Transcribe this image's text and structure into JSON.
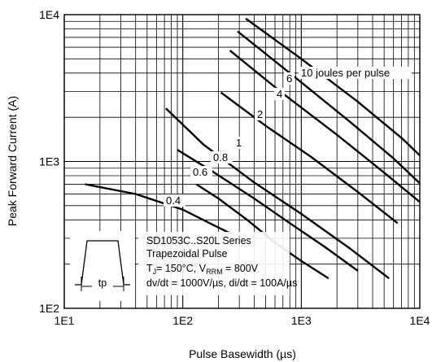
{
  "chart_data": {
    "type": "line",
    "xlabel": "Pulse Basewidth (µs)",
    "ylabel": "Peak Forward Current (A)",
    "xscale": "log",
    "yscale": "log",
    "xlim": [
      10,
      10000
    ],
    "ylim": [
      100,
      10000
    ],
    "grid": true,
    "x_ticks": [
      "1E1",
      "1E2",
      "1E3",
      "1E4"
    ],
    "y_ticks": [
      "1E2",
      "1E3",
      "1E4"
    ],
    "series": [
      {
        "label": "0.4",
        "x": [
          15,
          40,
          100,
          180,
          260
        ],
        "y": [
          700,
          600,
          470,
          370,
          320
        ]
      },
      {
        "label": "0.6",
        "x": [
          130,
          200,
          350,
          600,
          1000,
          1700
        ],
        "y": [
          700,
          560,
          400,
          280,
          210,
          160
        ]
      },
      {
        "label": "0.8",
        "x": [
          90,
          180,
          400,
          800,
          1600,
          3000
        ],
        "y": [
          1200,
          850,
          560,
          380,
          260,
          180
        ]
      },
      {
        "label": "1",
        "x": [
          72,
          150,
          400,
          1000,
          2500,
          5500
        ],
        "y": [
          2300,
          1300,
          720,
          440,
          260,
          160
        ]
      },
      {
        "label": "2",
        "x": [
          210,
          500,
          1200,
          3000,
          6500
        ],
        "y": [
          2950,
          1750,
          1080,
          620,
          380
        ]
      },
      {
        "label": "4",
        "x": [
          250,
          700,
          2000,
          5000,
          10000
        ],
        "y": [
          5700,
          2900,
          1520,
          840,
          530
        ]
      },
      {
        "label": "6",
        "x": [
          290,
          800,
          2500,
          6000,
          10000
        ],
        "y": [
          7700,
          4000,
          1900,
          1050,
          710
        ]
      },
      {
        "label": "10 joules per pulse",
        "x": [
          340,
          1000,
          3000,
          7000,
          10000
        ],
        "y": [
          9400,
          5000,
          2550,
          1450,
          1100
        ]
      }
    ],
    "annotations": {
      "series_name": "SD1053C..S20L Series",
      "pulse_shape": "Trapezoidal Pulse",
      "conditions_tj_sym": "T",
      "conditions_tj_sub": "J",
      "conditions_tj_val": "= 150°C, V",
      "conditions_vrrm_sub": "RRM",
      "conditions_vrrm_val": " = 800V",
      "slew_rates": "dv/dt = 1000V/µs, di/dt = 100A/µs",
      "pulse_label": "tp"
    }
  }
}
